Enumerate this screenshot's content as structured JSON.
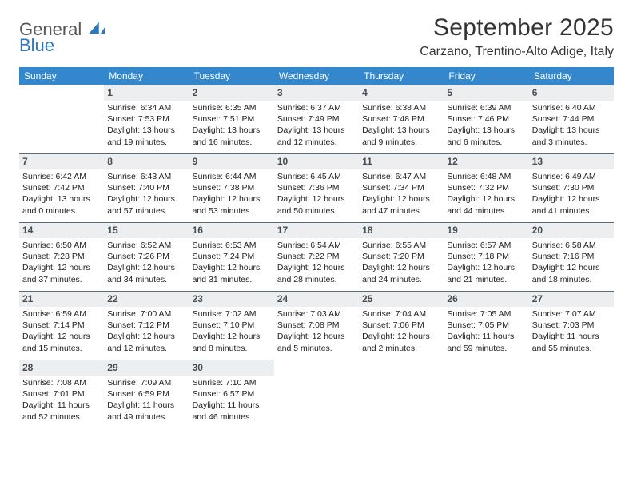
{
  "logo": {
    "word1": "General",
    "word2": "Blue"
  },
  "colors": {
    "header_bg": "#3387cc",
    "header_fg": "#ffffff",
    "daybar_bg": "#eceeef",
    "daybar_border": "#5b6a78",
    "logo_gray": "#575757",
    "logo_blue": "#2e77bb",
    "text": "#222222"
  },
  "title": {
    "month_year": "September 2025",
    "location": "Carzano, Trentino-Alto Adige, Italy"
  },
  "weekdays": [
    "Sunday",
    "Monday",
    "Tuesday",
    "Wednesday",
    "Thursday",
    "Friday",
    "Saturday"
  ],
  "labels": {
    "sunrise": "Sunrise:",
    "sunset": "Sunset:",
    "daylight": "Daylight:"
  },
  "weeks": [
    [
      null,
      {
        "n": "1",
        "sr": "6:34 AM",
        "ss": "7:53 PM",
        "dl": "13 hours and 19 minutes."
      },
      {
        "n": "2",
        "sr": "6:35 AM",
        "ss": "7:51 PM",
        "dl": "13 hours and 16 minutes."
      },
      {
        "n": "3",
        "sr": "6:37 AM",
        "ss": "7:49 PM",
        "dl": "13 hours and 12 minutes."
      },
      {
        "n": "4",
        "sr": "6:38 AM",
        "ss": "7:48 PM",
        "dl": "13 hours and 9 minutes."
      },
      {
        "n": "5",
        "sr": "6:39 AM",
        "ss": "7:46 PM",
        "dl": "13 hours and 6 minutes."
      },
      {
        "n": "6",
        "sr": "6:40 AM",
        "ss": "7:44 PM",
        "dl": "13 hours and 3 minutes."
      }
    ],
    [
      {
        "n": "7",
        "sr": "6:42 AM",
        "ss": "7:42 PM",
        "dl": "13 hours and 0 minutes."
      },
      {
        "n": "8",
        "sr": "6:43 AM",
        "ss": "7:40 PM",
        "dl": "12 hours and 57 minutes."
      },
      {
        "n": "9",
        "sr": "6:44 AM",
        "ss": "7:38 PM",
        "dl": "12 hours and 53 minutes."
      },
      {
        "n": "10",
        "sr": "6:45 AM",
        "ss": "7:36 PM",
        "dl": "12 hours and 50 minutes."
      },
      {
        "n": "11",
        "sr": "6:47 AM",
        "ss": "7:34 PM",
        "dl": "12 hours and 47 minutes."
      },
      {
        "n": "12",
        "sr": "6:48 AM",
        "ss": "7:32 PM",
        "dl": "12 hours and 44 minutes."
      },
      {
        "n": "13",
        "sr": "6:49 AM",
        "ss": "7:30 PM",
        "dl": "12 hours and 41 minutes."
      }
    ],
    [
      {
        "n": "14",
        "sr": "6:50 AM",
        "ss": "7:28 PM",
        "dl": "12 hours and 37 minutes."
      },
      {
        "n": "15",
        "sr": "6:52 AM",
        "ss": "7:26 PM",
        "dl": "12 hours and 34 minutes."
      },
      {
        "n": "16",
        "sr": "6:53 AM",
        "ss": "7:24 PM",
        "dl": "12 hours and 31 minutes."
      },
      {
        "n": "17",
        "sr": "6:54 AM",
        "ss": "7:22 PM",
        "dl": "12 hours and 28 minutes."
      },
      {
        "n": "18",
        "sr": "6:55 AM",
        "ss": "7:20 PM",
        "dl": "12 hours and 24 minutes."
      },
      {
        "n": "19",
        "sr": "6:57 AM",
        "ss": "7:18 PM",
        "dl": "12 hours and 21 minutes."
      },
      {
        "n": "20",
        "sr": "6:58 AM",
        "ss": "7:16 PM",
        "dl": "12 hours and 18 minutes."
      }
    ],
    [
      {
        "n": "21",
        "sr": "6:59 AM",
        "ss": "7:14 PM",
        "dl": "12 hours and 15 minutes."
      },
      {
        "n": "22",
        "sr": "7:00 AM",
        "ss": "7:12 PM",
        "dl": "12 hours and 12 minutes."
      },
      {
        "n": "23",
        "sr": "7:02 AM",
        "ss": "7:10 PM",
        "dl": "12 hours and 8 minutes."
      },
      {
        "n": "24",
        "sr": "7:03 AM",
        "ss": "7:08 PM",
        "dl": "12 hours and 5 minutes."
      },
      {
        "n": "25",
        "sr": "7:04 AM",
        "ss": "7:06 PM",
        "dl": "12 hours and 2 minutes."
      },
      {
        "n": "26",
        "sr": "7:05 AM",
        "ss": "7:05 PM",
        "dl": "11 hours and 59 minutes."
      },
      {
        "n": "27",
        "sr": "7:07 AM",
        "ss": "7:03 PM",
        "dl": "11 hours and 55 minutes."
      }
    ],
    [
      {
        "n": "28",
        "sr": "7:08 AM",
        "ss": "7:01 PM",
        "dl": "11 hours and 52 minutes."
      },
      {
        "n": "29",
        "sr": "7:09 AM",
        "ss": "6:59 PM",
        "dl": "11 hours and 49 minutes."
      },
      {
        "n": "30",
        "sr": "7:10 AM",
        "ss": "6:57 PM",
        "dl": "11 hours and 46 minutes."
      },
      null,
      null,
      null,
      null
    ]
  ]
}
